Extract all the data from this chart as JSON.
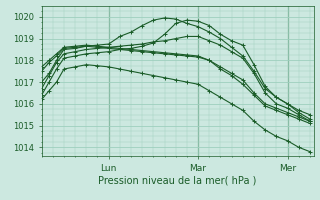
{
  "bg_color": "#cce8e0",
  "grid_color": "#9ecfbe",
  "line_color": "#1a5c28",
  "xlabel": "Pression niveau de la mer( hPa )",
  "ylabel_ticks": [
    1014,
    1015,
    1016,
    1017,
    1018,
    1019,
    1020
  ],
  "ylim": [
    1013.6,
    1020.5
  ],
  "xlim": [
    0,
    73
  ],
  "day_labels": [
    [
      "Lun",
      18
    ],
    [
      "Mar",
      42
    ],
    [
      "Mer",
      66
    ]
  ],
  "series": [
    [
      0,
      1017.0,
      2,
      1017.4,
      4,
      1018.0,
      6,
      1018.5,
      9,
      1018.55,
      12,
      1018.65,
      15,
      1018.7,
      18,
      1018.75,
      21,
      1019.1,
      24,
      1019.3,
      27,
      1019.6,
      30,
      1019.85,
      33,
      1019.95,
      36,
      1019.9,
      39,
      1019.7,
      42,
      1019.55,
      45,
      1019.3,
      48,
      1019.0,
      51,
      1018.6,
      54,
      1018.2,
      57,
      1017.5,
      60,
      1016.7,
      63,
      1016.3,
      66,
      1016.0,
      69,
      1015.7,
      72,
      1015.5
    ],
    [
      0,
      1016.4,
      2,
      1017.0,
      4,
      1017.6,
      6,
      1018.1,
      9,
      1018.2,
      12,
      1018.3,
      15,
      1018.35,
      18,
      1018.4,
      21,
      1018.5,
      24,
      1018.55,
      27,
      1018.65,
      30,
      1018.8,
      33,
      1019.2,
      36,
      1019.7,
      39,
      1019.85,
      42,
      1019.8,
      45,
      1019.6,
      48,
      1019.2,
      51,
      1018.9,
      54,
      1018.7,
      57,
      1017.8,
      60,
      1016.8,
      63,
      1016.3,
      66,
      1016.0,
      69,
      1015.6,
      72,
      1015.3
    ],
    [
      0,
      1016.7,
      2,
      1017.3,
      4,
      1017.9,
      6,
      1018.3,
      9,
      1018.4,
      12,
      1018.5,
      15,
      1018.55,
      18,
      1018.6,
      21,
      1018.65,
      24,
      1018.7,
      27,
      1018.75,
      30,
      1018.85,
      33,
      1018.9,
      36,
      1019.0,
      39,
      1019.1,
      42,
      1019.1,
      45,
      1018.9,
      48,
      1018.7,
      51,
      1018.4,
      54,
      1018.1,
      57,
      1017.4,
      60,
      1016.5,
      63,
      1016.0,
      66,
      1015.8,
      69,
      1015.5,
      72,
      1015.2
    ],
    [
      0,
      1017.5,
      2,
      1017.9,
      4,
      1018.2,
      6,
      1018.55,
      9,
      1018.6,
      12,
      1018.65,
      15,
      1018.6,
      18,
      1018.55,
      21,
      1018.5,
      24,
      1018.45,
      27,
      1018.4,
      30,
      1018.35,
      33,
      1018.3,
      36,
      1018.25,
      39,
      1018.2,
      42,
      1018.15,
      45,
      1018.0,
      48,
      1017.7,
      51,
      1017.4,
      54,
      1017.1,
      57,
      1016.5,
      60,
      1016.0,
      63,
      1015.8,
      66,
      1015.6,
      69,
      1015.4,
      72,
      1015.2
    ],
    [
      0,
      1017.7,
      2,
      1018.0,
      4,
      1018.3,
      6,
      1018.6,
      9,
      1018.65,
      12,
      1018.7,
      15,
      1018.65,
      18,
      1018.6,
      21,
      1018.55,
      24,
      1018.5,
      27,
      1018.45,
      30,
      1018.4,
      33,
      1018.35,
      36,
      1018.3,
      39,
      1018.25,
      42,
      1018.2,
      45,
      1018.0,
      48,
      1017.6,
      51,
      1017.3,
      54,
      1016.9,
      57,
      1016.4,
      60,
      1015.9,
      63,
      1015.7,
      66,
      1015.5,
      69,
      1015.3,
      72,
      1015.1
    ],
    [
      0,
      1016.2,
      2,
      1016.6,
      4,
      1017.0,
      6,
      1017.6,
      9,
      1017.7,
      12,
      1017.8,
      15,
      1017.75,
      18,
      1017.7,
      21,
      1017.6,
      24,
      1017.5,
      27,
      1017.4,
      30,
      1017.3,
      33,
      1017.2,
      36,
      1017.1,
      39,
      1017.0,
      42,
      1016.9,
      45,
      1016.6,
      48,
      1016.3,
      51,
      1016.0,
      54,
      1015.7,
      57,
      1015.2,
      60,
      1014.8,
      63,
      1014.5,
      66,
      1014.3,
      69,
      1014.0,
      72,
      1013.8
    ]
  ]
}
